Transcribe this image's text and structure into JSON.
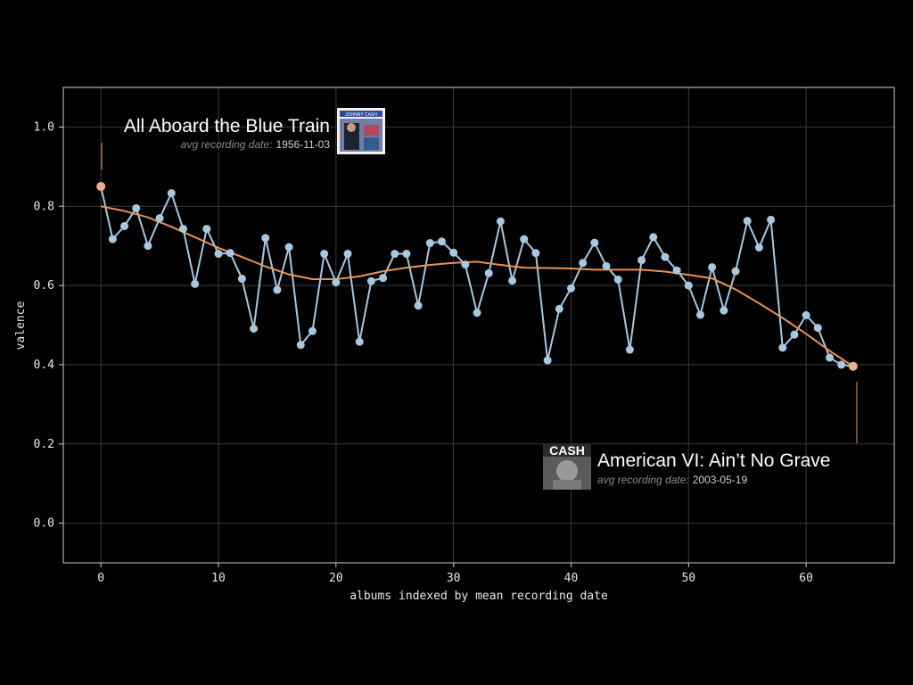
{
  "colors": {
    "background": "#000000",
    "plot_border": "#cfcfcf",
    "grid": "#3a3a3a",
    "text": "#e8e8e8",
    "series": "#a8c8df",
    "smooth": "#e8935a",
    "endpoint": "#f0b090",
    "muted_label": "#8a8a8a"
  },
  "chart_data": {
    "type": "line",
    "xlabel": "albums indexed by mean recording date",
    "ylabel": "valence",
    "xlim": [
      -3.2,
      67.5
    ],
    "ylim": [
      -0.1,
      1.1
    ],
    "xticks": [
      0,
      10,
      20,
      30,
      40,
      50,
      60
    ],
    "yticks": [
      0.0,
      0.2,
      0.4,
      0.6,
      0.8,
      1.0
    ],
    "ytick_labels": [
      "0.0",
      "0.2",
      "0.4",
      "0.6",
      "0.8",
      "1.0"
    ],
    "grid": true,
    "series": [
      {
        "x": [
          0,
          1,
          2,
          3,
          4,
          5,
          6,
          7,
          8,
          9,
          10,
          11,
          12,
          13,
          14,
          15,
          16,
          17,
          18,
          19,
          20,
          21,
          22,
          23,
          24,
          25,
          26,
          27,
          28,
          29,
          30,
          31,
          32,
          33,
          34,
          35,
          36,
          37,
          38,
          39,
          40,
          41,
          42,
          43,
          44,
          45,
          46,
          47,
          48,
          49,
          50,
          51,
          52,
          53,
          54,
          55,
          56,
          57,
          58,
          59,
          60,
          61,
          62,
          63,
          64
        ],
        "y": [
          0.85,
          0.717,
          0.75,
          0.795,
          0.7,
          0.77,
          0.833,
          0.743,
          0.604,
          0.743,
          0.68,
          0.682,
          0.617,
          0.491,
          0.72,
          0.589,
          0.697,
          0.45,
          0.485,
          0.68,
          0.608,
          0.68,
          0.458,
          0.611,
          0.619,
          0.68,
          0.68,
          0.549,
          0.707,
          0.711,
          0.683,
          0.653,
          0.531,
          0.631,
          0.762,
          0.612,
          0.717,
          0.682,
          0.411,
          0.541,
          0.593,
          0.657,
          0.708,
          0.649,
          0.615,
          0.438,
          0.664,
          0.722,
          0.672,
          0.638,
          0.6,
          0.526,
          0.646,
          0.537,
          0.636,
          0.763,
          0.696,
          0.766,
          0.443,
          0.476,
          0.525,
          0.493,
          0.418,
          0.4,
          0.396
        ]
      },
      {
        "x": [
          0,
          2,
          4,
          6,
          8,
          10,
          12,
          14,
          16,
          18,
          20,
          22,
          24,
          26,
          28,
          30,
          32,
          34,
          36,
          38,
          40,
          42,
          44,
          46,
          48,
          50,
          52,
          54,
          56,
          58,
          60,
          62,
          64
        ],
        "y": [
          0.8,
          0.788,
          0.772,
          0.748,
          0.722,
          0.695,
          0.672,
          0.648,
          0.628,
          0.616,
          0.616,
          0.623,
          0.636,
          0.645,
          0.652,
          0.657,
          0.66,
          0.652,
          0.645,
          0.644,
          0.643,
          0.64,
          0.64,
          0.64,
          0.635,
          0.627,
          0.618,
          0.59,
          0.555,
          0.518,
          0.478,
          0.435,
          0.396
        ]
      }
    ],
    "annotations": [
      {
        "title": "All Aboard the Blue Train",
        "date_label": "avg recording date:",
        "date_value": "1956-11-03",
        "x": 0,
        "y": 0.85
      },
      {
        "title": "American VI: Ain’t No Grave",
        "date_label": "avg recording date:",
        "date_value": "2003-05-19",
        "x": 64,
        "y": 0.396
      }
    ],
    "album_cover_texts": {
      "first": "JOHNNY CASH",
      "second": "CASH"
    }
  }
}
